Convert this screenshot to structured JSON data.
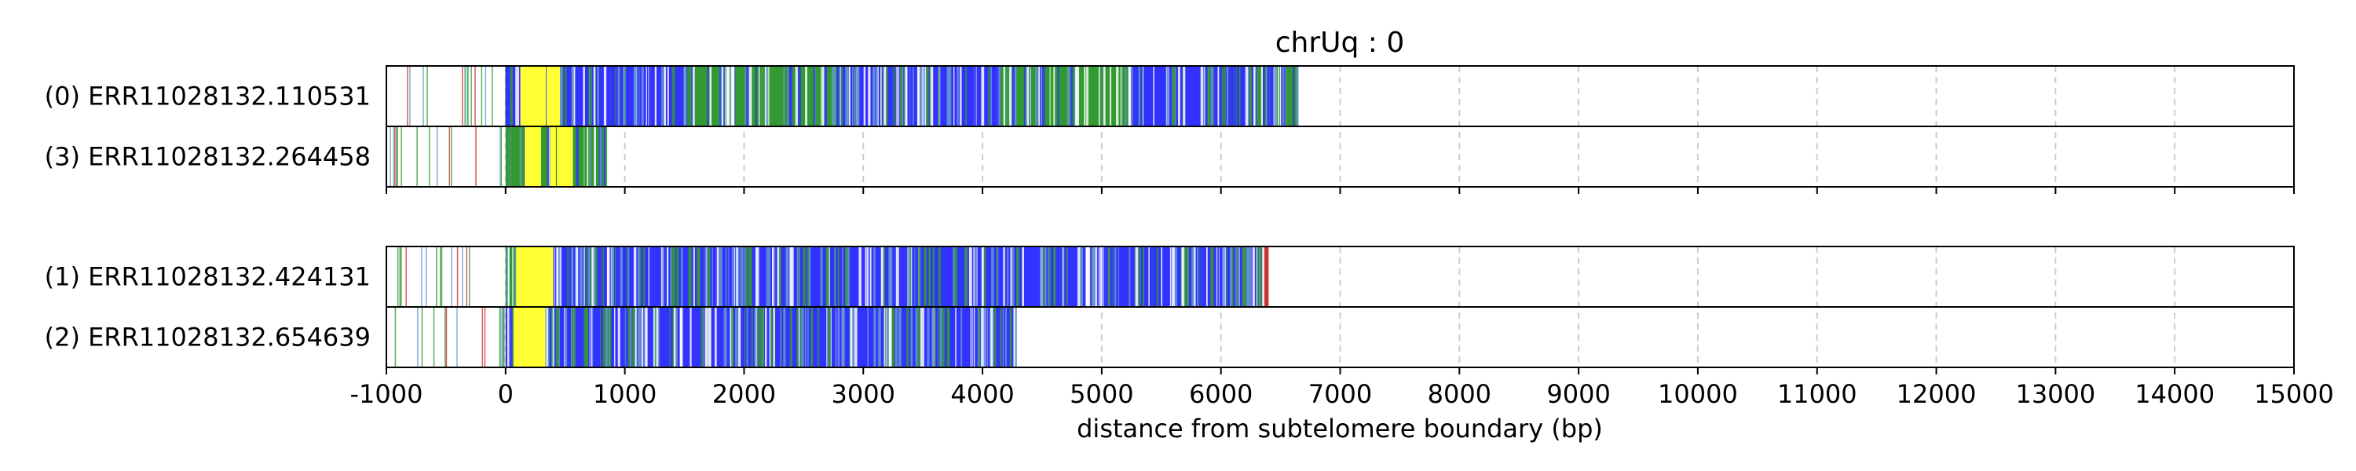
{
  "chart_data": {
    "type": "read-track",
    "title": "chrUq : 0",
    "xlabel": "distance from subtelomere boundary (bp)",
    "ylabel": "",
    "xlim": [
      -1000,
      15000
    ],
    "xticks": [
      -1000,
      0,
      1000,
      2000,
      3000,
      4000,
      5000,
      6000,
      7000,
      8000,
      9000,
      10000,
      11000,
      12000,
      13000,
      14000,
      15000
    ],
    "grid": "vertical dashed at each x tick",
    "colors": {
      "blue": "#3333ff",
      "green": "#339933",
      "yellow": "#ffff33",
      "red": "#cc3333",
      "light_blue": "#6699cc",
      "frame": "#000000",
      "grid": "#cccccc"
    },
    "panels": [
      {
        "rows": [
          {
            "label": "(0) ERR11028132.110531",
            "end": 6650,
            "sparse_start": -1000,
            "sparse_end": 0,
            "segments": [
              {
                "start": 0,
                "end": 1000,
                "color": "#3333ff"
              },
              {
                "start": 1000,
                "end": 1550,
                "color": "#3333ff"
              },
              {
                "start": 1550,
                "end": 2150,
                "color": "#339933"
              },
              {
                "start": 2150,
                "end": 2800,
                "color": "#339933"
              },
              {
                "start": 2800,
                "end": 4150,
                "color": "#3333ff"
              },
              {
                "start": 4150,
                "end": 5200,
                "color": "#339933"
              },
              {
                "start": 5200,
                "end": 6300,
                "color": "#3333ff"
              },
              {
                "start": 6300,
                "end": 6650,
                "color": "#339933"
              }
            ],
            "yellow_zones": [
              [
                100,
                400
              ]
            ]
          },
          {
            "label": "(3) ERR11028132.264458",
            "end": 850,
            "sparse_start": -1000,
            "sparse_end": 0,
            "segments": [
              {
                "start": 0,
                "end": 850,
                "color": "#339933"
              }
            ],
            "yellow_zones": [
              [
                80,
                500
              ]
            ]
          }
        ]
      },
      {
        "rows": [
          {
            "label": "(1) ERR11028132.424131",
            "end": 6400,
            "sparse_start": -1000,
            "sparse_end": 0,
            "segments": [
              {
                "start": 0,
                "end": 400,
                "color": "#339933"
              },
              {
                "start": 400,
                "end": 6350,
                "color": "#3333ff"
              },
              {
                "start": 6350,
                "end": 6400,
                "color": "#cc3333"
              }
            ],
            "yellow_zones": [
              [
                50,
                350
              ]
            ]
          },
          {
            "label": "(2) ERR11028132.654639",
            "end": 4280,
            "sparse_start": -1000,
            "sparse_end": 0,
            "segments": [
              {
                "start": 0,
                "end": 4280,
                "color": "#3333ff"
              }
            ],
            "yellow_zones": [
              [
                50,
                300
              ]
            ]
          }
        ]
      }
    ]
  }
}
